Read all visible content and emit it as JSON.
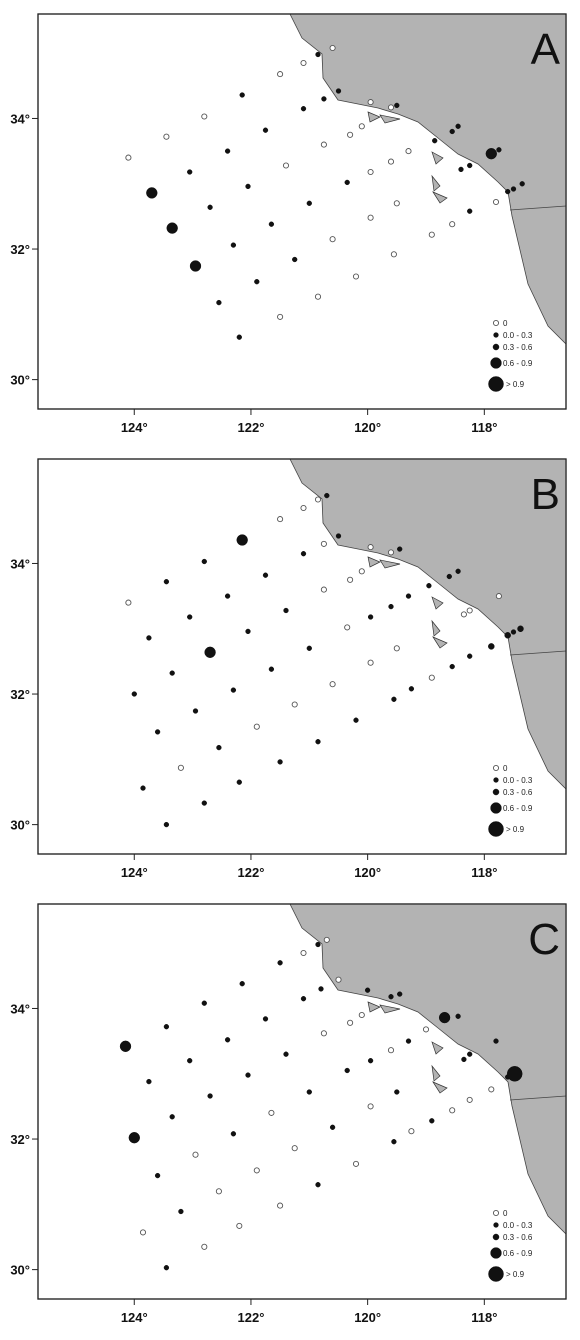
{
  "axes": {
    "x_tick_labels": [
      "124°",
      "122°",
      "120°",
      "118°"
    ],
    "x_tick_values": [
      124,
      122,
      120,
      118
    ],
    "y_tick_labels": [
      "34°",
      "32°",
      "30°"
    ],
    "y_tick_values": [
      34,
      32,
      30
    ],
    "lon_range": [
      125.65,
      116.6
    ],
    "lat_range": [
      29.55,
      35.6
    ]
  },
  "colors": {
    "land": "#b3b3b3",
    "marker": "#111111",
    "frame": "#222222"
  },
  "legend": {
    "position": "bottom-right",
    "items": [
      {
        "label": "0",
        "open": true,
        "size": 1
      },
      {
        "label": "0.0 - 0.3",
        "open": false,
        "size": 1
      },
      {
        "label": "0.3 - 0.6",
        "open": false,
        "size": 2
      },
      {
        "label": "0.6 - 0.9",
        "open": false,
        "size": 3
      },
      {
        "label": "> 0.9",
        "open": false,
        "size": 4
      }
    ]
  },
  "panels": [
    {
      "letter": "A",
      "stations": [
        [
          124.1,
          33.4,
          0
        ],
        [
          123.45,
          33.72,
          0
        ],
        [
          122.8,
          34.03,
          0
        ],
        [
          122.15,
          34.36,
          1
        ],
        [
          121.5,
          34.68,
          0
        ],
        [
          121.1,
          34.85,
          0
        ],
        [
          120.85,
          34.98,
          1
        ],
        [
          120.6,
          35.08,
          0
        ],
        [
          123.7,
          32.86,
          3
        ],
        [
          123.05,
          33.18,
          1
        ],
        [
          122.4,
          33.5,
          1
        ],
        [
          121.75,
          33.82,
          1
        ],
        [
          121.1,
          34.15,
          1
        ],
        [
          120.75,
          34.3,
          1
        ],
        [
          120.5,
          34.42,
          1
        ],
        [
          123.35,
          32.32,
          3
        ],
        [
          122.7,
          32.64,
          1
        ],
        [
          122.05,
          32.96,
          1
        ],
        [
          121.4,
          33.28,
          0
        ],
        [
          120.75,
          33.6,
          0
        ],
        [
          120.3,
          33.75,
          0
        ],
        [
          120.1,
          33.88,
          0
        ],
        [
          119.95,
          34.25,
          0
        ],
        [
          119.6,
          34.17,
          0
        ],
        [
          119.5,
          34.2,
          1
        ],
        [
          122.95,
          31.74,
          3
        ],
        [
          122.3,
          32.06,
          1
        ],
        [
          121.65,
          32.38,
          1
        ],
        [
          121.0,
          32.7,
          1
        ],
        [
          120.35,
          33.02,
          1
        ],
        [
          119.95,
          33.18,
          0
        ],
        [
          119.6,
          33.34,
          0
        ],
        [
          119.3,
          33.5,
          0
        ],
        [
          118.85,
          33.66,
          1
        ],
        [
          118.55,
          33.8,
          1
        ],
        [
          118.45,
          33.88,
          1
        ],
        [
          122.55,
          31.18,
          1
        ],
        [
          121.9,
          31.5,
          1
        ],
        [
          121.25,
          31.84,
          1
        ],
        [
          120.6,
          32.15,
          0
        ],
        [
          119.95,
          32.48,
          0
        ],
        [
          119.5,
          32.7,
          0
        ],
        [
          118.4,
          33.22,
          1
        ],
        [
          118.25,
          33.28,
          1
        ],
        [
          117.88,
          33.46,
          3
        ],
        [
          117.75,
          33.52,
          1
        ],
        [
          122.2,
          30.65,
          1
        ],
        [
          121.5,
          30.96,
          0
        ],
        [
          120.85,
          31.27,
          0
        ],
        [
          120.2,
          31.58,
          0
        ],
        [
          119.55,
          31.92,
          0
        ],
        [
          118.9,
          32.22,
          0
        ],
        [
          118.55,
          32.38,
          0
        ],
        [
          118.25,
          32.58,
          1
        ],
        [
          117.8,
          32.72,
          0
        ],
        [
          117.6,
          32.88,
          1
        ],
        [
          117.5,
          32.92,
          1
        ],
        [
          117.35,
          33.0,
          1
        ]
      ]
    },
    {
      "letter": "B",
      "stations": [
        [
          124.1,
          33.4,
          0
        ],
        [
          123.45,
          33.72,
          1
        ],
        [
          122.8,
          34.03,
          1
        ],
        [
          122.15,
          34.36,
          3
        ],
        [
          121.5,
          34.68,
          0
        ],
        [
          121.1,
          34.85,
          0
        ],
        [
          120.85,
          34.98,
          0
        ],
        [
          120.7,
          35.04,
          1
        ],
        [
          124.0,
          32.0,
          1
        ],
        [
          123.75,
          32.86,
          1
        ],
        [
          123.05,
          33.18,
          1
        ],
        [
          122.4,
          33.5,
          1
        ],
        [
          121.75,
          33.82,
          1
        ],
        [
          121.1,
          34.15,
          1
        ],
        [
          120.75,
          34.3,
          0
        ],
        [
          120.5,
          34.42,
          1
        ],
        [
          123.6,
          31.42,
          1
        ],
        [
          123.35,
          32.32,
          1
        ],
        [
          122.7,
          32.64,
          3
        ],
        [
          122.05,
          32.96,
          1
        ],
        [
          121.4,
          33.28,
          1
        ],
        [
          120.75,
          33.6,
          0
        ],
        [
          120.3,
          33.75,
          0
        ],
        [
          120.1,
          33.88,
          0
        ],
        [
          119.95,
          34.25,
          0
        ],
        [
          119.6,
          34.17,
          0
        ],
        [
          119.45,
          34.22,
          1
        ],
        [
          123.85,
          30.56,
          1
        ],
        [
          123.2,
          30.87,
          0
        ],
        [
          122.95,
          31.74,
          1
        ],
        [
          122.3,
          32.06,
          1
        ],
        [
          121.65,
          32.38,
          1
        ],
        [
          121.0,
          32.7,
          1
        ],
        [
          120.35,
          33.02,
          0
        ],
        [
          119.95,
          33.18,
          1
        ],
        [
          119.6,
          33.34,
          1
        ],
        [
          119.3,
          33.5,
          1
        ],
        [
          118.95,
          33.66,
          1
        ],
        [
          118.6,
          33.8,
          1
        ],
        [
          118.45,
          33.88,
          1
        ],
        [
          123.45,
          30.0,
          1
        ],
        [
          122.8,
          30.33,
          1
        ],
        [
          122.55,
          31.18,
          1
        ],
        [
          121.9,
          31.5,
          0
        ],
        [
          121.25,
          31.84,
          0
        ],
        [
          120.6,
          32.15,
          0
        ],
        [
          119.95,
          32.48,
          0
        ],
        [
          119.5,
          32.7,
          0
        ],
        [
          118.35,
          33.22,
          0
        ],
        [
          118.25,
          33.28,
          0
        ],
        [
          117.75,
          33.5,
          0
        ],
        [
          122.2,
          30.65,
          1
        ],
        [
          121.5,
          30.96,
          1
        ],
        [
          120.85,
          31.27,
          1
        ],
        [
          120.2,
          31.6,
          1
        ],
        [
          119.55,
          31.92,
          1
        ],
        [
          119.25,
          32.08,
          1
        ],
        [
          118.9,
          32.25,
          0
        ],
        [
          118.55,
          32.42,
          1
        ],
        [
          118.25,
          32.58,
          1
        ],
        [
          117.88,
          32.73,
          2
        ],
        [
          117.6,
          32.9,
          2
        ],
        [
          117.5,
          32.95,
          1
        ],
        [
          117.38,
          33.0,
          2
        ]
      ]
    },
    {
      "letter": "C",
      "stations": [
        [
          124.15,
          33.42,
          3
        ],
        [
          123.45,
          33.72,
          1
        ],
        [
          122.8,
          34.08,
          1
        ],
        [
          122.15,
          34.38,
          1
        ],
        [
          121.5,
          34.7,
          1
        ],
        [
          121.1,
          34.85,
          0
        ],
        [
          120.85,
          34.98,
          1
        ],
        [
          120.7,
          35.05,
          0
        ],
        [
          124.0,
          32.02,
          3
        ],
        [
          123.75,
          32.88,
          1
        ],
        [
          123.05,
          33.2,
          1
        ],
        [
          122.4,
          33.52,
          1
        ],
        [
          121.75,
          33.84,
          1
        ],
        [
          121.1,
          34.15,
          1
        ],
        [
          120.8,
          34.3,
          1
        ],
        [
          120.5,
          34.44,
          0
        ],
        [
          123.6,
          31.44,
          1
        ],
        [
          123.35,
          32.34,
          1
        ],
        [
          122.7,
          32.66,
          1
        ],
        [
          122.05,
          32.98,
          1
        ],
        [
          121.4,
          33.3,
          1
        ],
        [
          120.75,
          33.62,
          0
        ],
        [
          120.3,
          33.78,
          0
        ],
        [
          120.1,
          33.9,
          0
        ],
        [
          120.0,
          34.28,
          1
        ],
        [
          119.6,
          34.18,
          1
        ],
        [
          119.45,
          34.22,
          1
        ],
        [
          123.85,
          30.57,
          0
        ],
        [
          123.2,
          30.89,
          1
        ],
        [
          122.95,
          31.76,
          0
        ],
        [
          122.3,
          32.08,
          1
        ],
        [
          121.65,
          32.4,
          0
        ],
        [
          121.0,
          32.72,
          1
        ],
        [
          120.35,
          33.05,
          1
        ],
        [
          119.95,
          33.2,
          1
        ],
        [
          119.6,
          33.36,
          0
        ],
        [
          119.3,
          33.5,
          1
        ],
        [
          119.0,
          33.68,
          0
        ],
        [
          118.68,
          33.86,
          3
        ],
        [
          118.45,
          33.88,
          1
        ],
        [
          123.45,
          30.03,
          1
        ],
        [
          122.8,
          30.35,
          0
        ],
        [
          122.55,
          31.2,
          0
        ],
        [
          121.9,
          31.52,
          0
        ],
        [
          121.25,
          31.86,
          0
        ],
        [
          120.6,
          32.18,
          1
        ],
        [
          119.95,
          32.5,
          0
        ],
        [
          119.5,
          32.72,
          1
        ],
        [
          118.35,
          33.22,
          1
        ],
        [
          118.25,
          33.3,
          1
        ],
        [
          117.8,
          33.5,
          1
        ],
        [
          122.2,
          30.67,
          0
        ],
        [
          121.5,
          30.98,
          0
        ],
        [
          120.85,
          31.3,
          1
        ],
        [
          120.2,
          31.62,
          0
        ],
        [
          119.55,
          31.96,
          1
        ],
        [
          119.25,
          32.12,
          0
        ],
        [
          118.9,
          32.28,
          1
        ],
        [
          118.55,
          32.44,
          0
        ],
        [
          118.25,
          32.6,
          0
        ],
        [
          117.88,
          32.76,
          0
        ],
        [
          117.6,
          32.95,
          1
        ],
        [
          117.48,
          33.0,
          4
        ]
      ]
    }
  ]
}
